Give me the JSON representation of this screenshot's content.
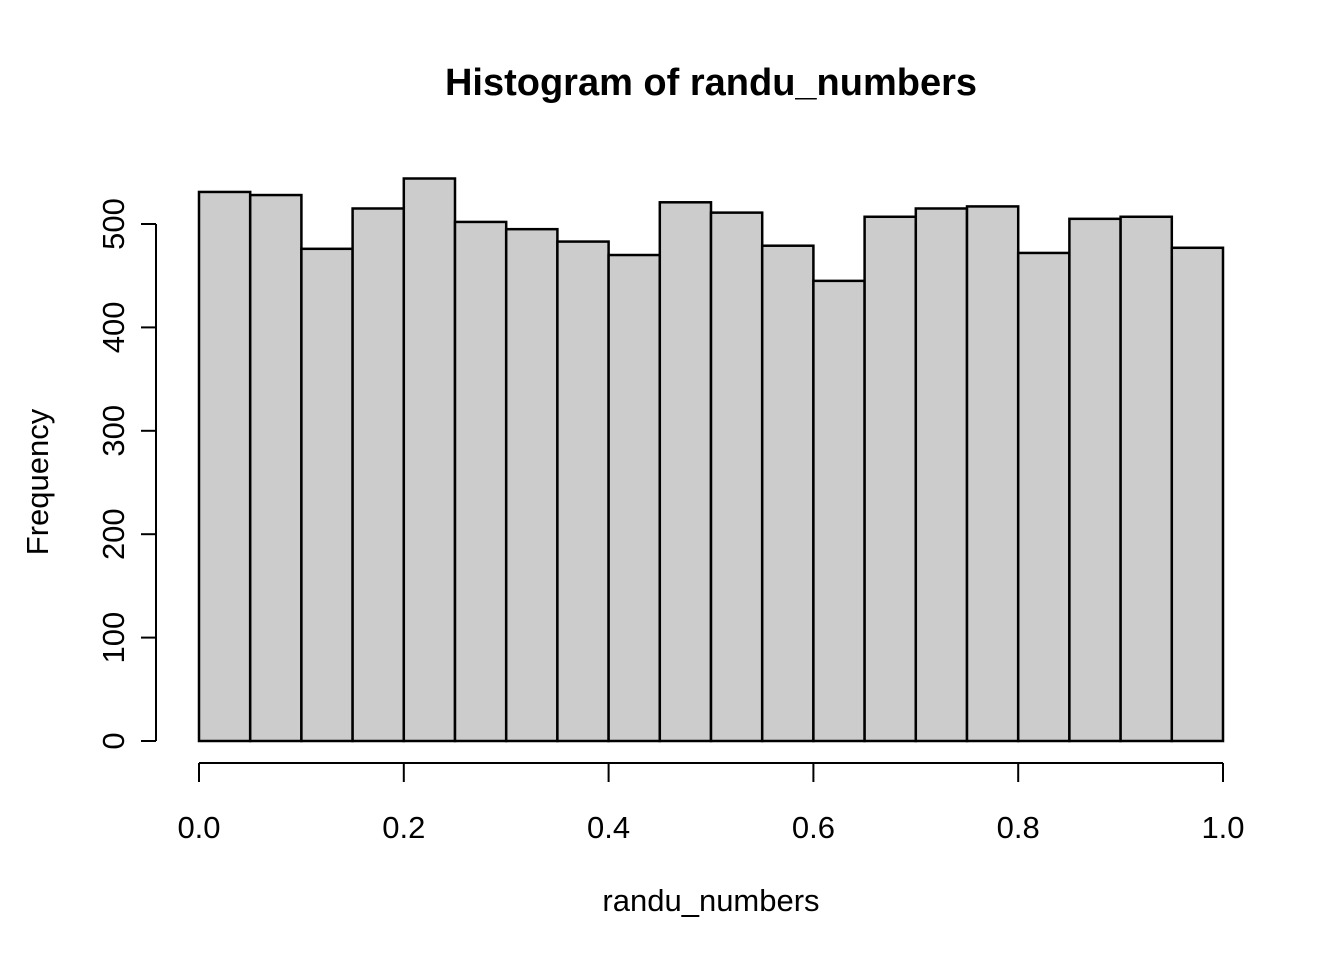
{
  "figure": {
    "title": "Histogram of randu_numbers",
    "xlabel": "randu_numbers",
    "ylabel": "Frequency"
  },
  "chart_data": {
    "type": "bar",
    "subtype": "histogram",
    "title": "Histogram of randu_numbers",
    "xlabel": "randu_numbers",
    "ylabel": "Frequency",
    "bin_edges": [
      0.0,
      0.05,
      0.1,
      0.15,
      0.2,
      0.25,
      0.3,
      0.35,
      0.4,
      0.45,
      0.5,
      0.55,
      0.6,
      0.65,
      0.7,
      0.75,
      0.8,
      0.85,
      0.9,
      0.95,
      1.0
    ],
    "values": [
      531,
      528,
      476,
      515,
      544,
      502,
      495,
      483,
      470,
      521,
      511,
      479,
      445,
      507,
      515,
      517,
      472,
      505,
      507,
      477
    ],
    "x_ticks": [
      {
        "value": 0.0,
        "label": "0.0"
      },
      {
        "value": 0.2,
        "label": "0.2"
      },
      {
        "value": 0.4,
        "label": "0.4"
      },
      {
        "value": 0.6,
        "label": "0.6"
      },
      {
        "value": 0.8,
        "label": "0.8"
      },
      {
        "value": 1.0,
        "label": "1.0"
      }
    ],
    "y_ticks": [
      {
        "value": 0,
        "label": "0"
      },
      {
        "value": 100,
        "label": "100"
      },
      {
        "value": 200,
        "label": "200"
      },
      {
        "value": 300,
        "label": "300"
      },
      {
        "value": 400,
        "label": "400"
      },
      {
        "value": 500,
        "label": "500"
      }
    ],
    "xlim": [
      0.0,
      1.0
    ],
    "ylim": [
      0,
      500
    ],
    "grid": false,
    "legend": null,
    "colors": {
      "background": "#ffffff",
      "bar_fill": "#cccccc",
      "bar_stroke": "#000000",
      "axis": "#000000",
      "text": "#000000"
    }
  }
}
